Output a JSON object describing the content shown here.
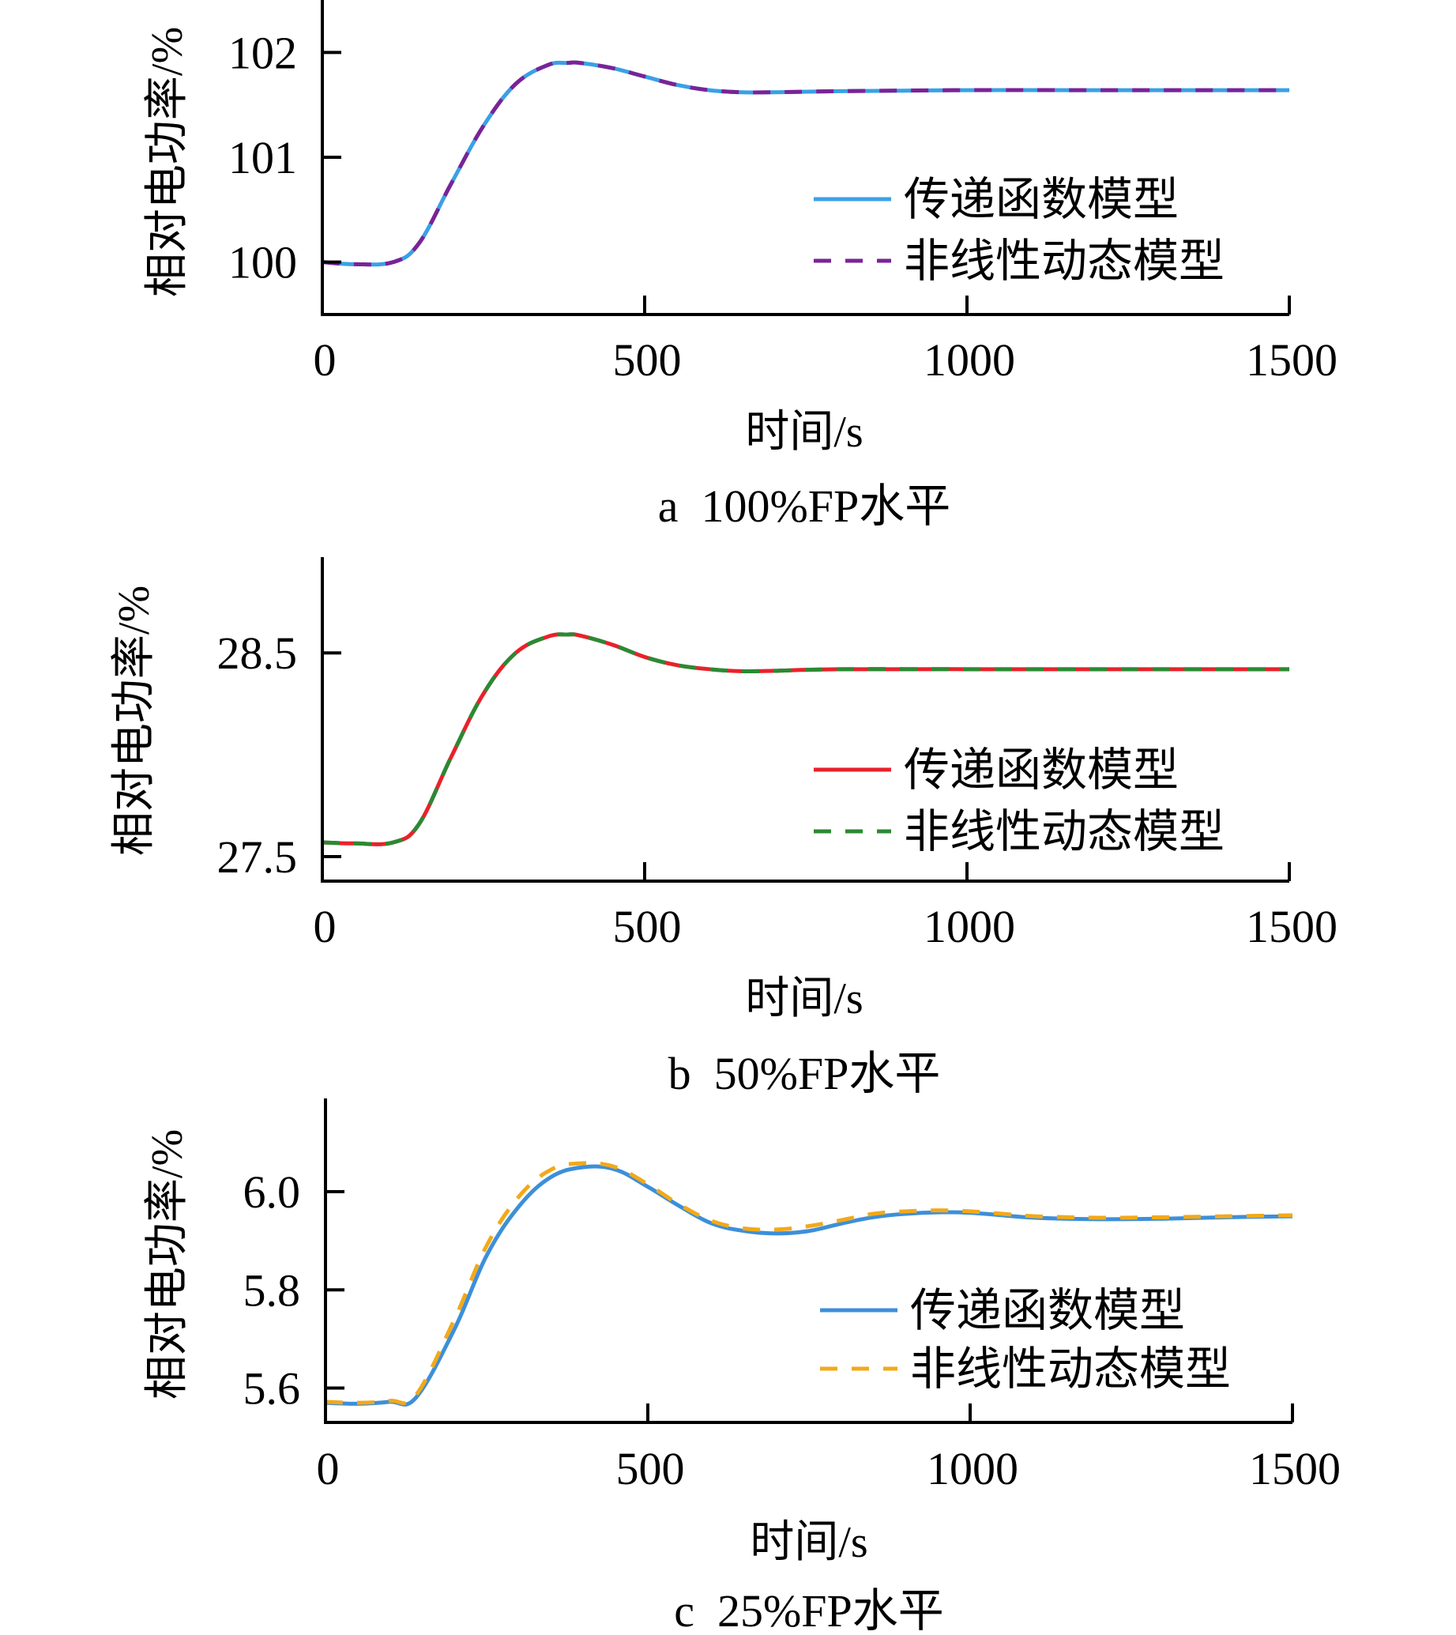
{
  "charts": [
    {
      "caption": "a  100%FP水平",
      "chart_data": {
        "type": "line",
        "title": "",
        "xlabel": "时间/s",
        "ylabel": "相对电功率/%",
        "xlim": [
          0,
          1500
        ],
        "ylim": [
          99.5,
          102.5
        ],
        "xticks": [
          "0",
          "500",
          "1000",
          "1500"
        ],
        "yticks": [
          {
            "value": 100,
            "label": "100"
          },
          {
            "value": 101,
            "label": "101"
          },
          {
            "value": 102,
            "label": "102"
          }
        ],
        "legend_position": "right",
        "series": [
          {
            "name": "传递函数模型",
            "color": "#3aa0e6",
            "dash": "solid",
            "x": [
              0,
              50,
              110,
              150,
              200,
              250,
              300,
              350,
              380,
              400,
              450,
              500,
              550,
              600,
              650,
              700,
              800,
              1000,
              1200,
              1500
            ],
            "y": [
              100.0,
              99.98,
              100.0,
              100.18,
              100.75,
              101.3,
              101.7,
              101.88,
              101.9,
              101.9,
              101.85,
              101.77,
              101.69,
              101.64,
              101.62,
              101.62,
              101.63,
              101.64,
              101.64,
              101.64
            ]
          },
          {
            "name": "非线性动态模型",
            "color": "#7a2396",
            "dash": "dashed",
            "x": [
              0,
              50,
              110,
              150,
              200,
              250,
              300,
              350,
              380,
              400,
              450,
              500,
              550,
              600,
              650,
              700,
              800,
              1000,
              1200,
              1500
            ],
            "y": [
              100.0,
              99.98,
              100.0,
              100.18,
              100.75,
              101.3,
              101.7,
              101.88,
              101.9,
              101.9,
              101.85,
              101.77,
              101.69,
              101.64,
              101.62,
              101.62,
              101.63,
              101.64,
              101.64,
              101.64
            ]
          }
        ]
      }
    },
    {
      "caption": "b  50%FP水平",
      "chart_data": {
        "type": "line",
        "title": "",
        "xlabel": "时间/s",
        "ylabel": "相对电功率/%",
        "xlim": [
          0,
          1500
        ],
        "ylim": [
          27.38,
          28.97
        ],
        "xticks": [
          "0",
          "500",
          "1000",
          "1500"
        ],
        "yticks": [
          {
            "value": 27.5,
            "label": "27.5"
          },
          {
            "value": 28.5,
            "label": "28.5"
          }
        ],
        "legend_position": "right",
        "series": [
          {
            "name": "传递函数模型",
            "color": "#e8222b",
            "dash": "solid",
            "x": [
              0,
              50,
              110,
              150,
              200,
              250,
              300,
              350,
              380,
              400,
              450,
              500,
              550,
              600,
              650,
              700,
              800,
              1000,
              1200,
              1500
            ],
            "y": [
              27.57,
              27.565,
              27.57,
              27.66,
              27.99,
              28.3,
              28.5,
              28.58,
              28.59,
              28.585,
              28.54,
              28.48,
              28.44,
              28.42,
              28.41,
              28.412,
              28.42,
              28.42,
              28.42,
              28.42
            ]
          },
          {
            "name": "非线性动态模型",
            "color": "#2a8a34",
            "dash": "dashed",
            "x": [
              0,
              50,
              110,
              150,
              200,
              250,
              300,
              350,
              380,
              400,
              450,
              500,
              550,
              600,
              650,
              700,
              800,
              1000,
              1200,
              1500
            ],
            "y": [
              27.57,
              27.565,
              27.57,
              27.66,
              27.99,
              28.3,
              28.5,
              28.58,
              28.59,
              28.585,
              28.54,
              28.48,
              28.44,
              28.42,
              28.41,
              28.412,
              28.42,
              28.42,
              28.42,
              28.42
            ]
          }
        ]
      }
    },
    {
      "caption": "c  25%FP水平",
      "chart_data": {
        "type": "line",
        "title": "",
        "xlabel": "时间/s",
        "ylabel": "相对电功率/%",
        "xlim": [
          0,
          1500
        ],
        "ylim": [
          5.53,
          6.19
        ],
        "xticks": [
          "0",
          "500",
          "1000",
          "1500"
        ],
        "yticks": [
          {
            "value": 5.6,
            "label": "5.6"
          },
          {
            "value": 5.8,
            "label": "5.8"
          },
          {
            "value": 6.0,
            "label": "6.0"
          }
        ],
        "legend_position": "right",
        "series": [
          {
            "name": "传递函数模型",
            "color": "#3d8fd9",
            "dash": "solid",
            "x": [
              0,
              50,
              100,
              140,
              200,
              250,
              300,
              350,
              400,
              450,
              500,
              550,
              600,
              650,
              700,
              750,
              800,
              850,
              900,
              950,
              1000,
              1050,
              1100,
              1200,
              1300,
              1400,
              1500
            ],
            "y": [
              5.57,
              5.568,
              5.572,
              5.58,
              5.72,
              5.87,
              5.97,
              6.03,
              6.05,
              6.045,
              6.01,
              5.97,
              5.935,
              5.92,
              5.915,
              5.92,
              5.935,
              5.948,
              5.955,
              5.958,
              5.957,
              5.952,
              5.947,
              5.944,
              5.945,
              5.948,
              5.95
            ]
          },
          {
            "name": "非线性动态模型",
            "color": "#f2a91a",
            "dash": "dashed",
            "x": [
              0,
              50,
              100,
              140,
              200,
              250,
              300,
              350,
              400,
              450,
              500,
              550,
              600,
              650,
              700,
              750,
              800,
              850,
              900,
              950,
              1000,
              1050,
              1100,
              1200,
              1300,
              1400,
              1500
            ],
            "y": [
              5.572,
              5.57,
              5.574,
              5.585,
              5.74,
              5.89,
              5.99,
              6.045,
              6.058,
              6.05,
              6.015,
              5.973,
              5.94,
              5.925,
              5.923,
              5.93,
              5.942,
              5.955,
              5.96,
              5.962,
              5.96,
              5.955,
              5.95,
              5.947,
              5.948,
              5.95,
              5.952
            ]
          }
        ]
      }
    }
  ]
}
